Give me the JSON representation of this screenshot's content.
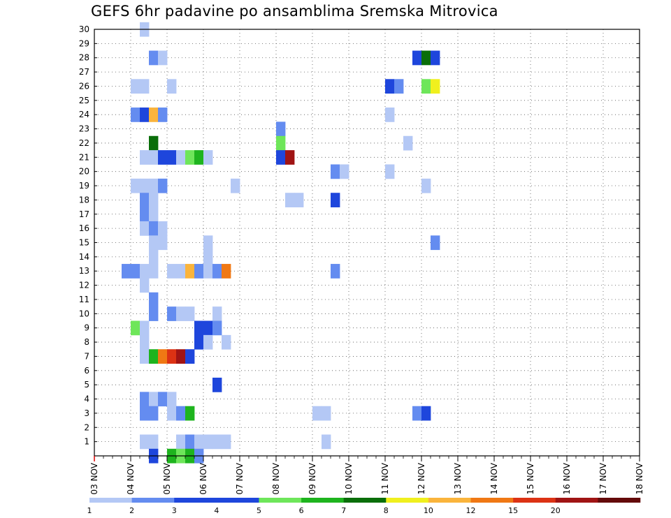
{
  "chart_data": {
    "type": "heatmap",
    "title": "GEFS 6hr padavine po ansamblima Sremska Mitrovica",
    "xlabel": "",
    "ylabel": "",
    "x_ticks": [
      "03 NOV",
      "04 NOV",
      "05 NOV",
      "06 NOV",
      "07 NOV",
      "08 NOV",
      "09 NOV",
      "10 NOV",
      "11 NOV",
      "12 NOV",
      "13 NOV",
      "14 NOV",
      "15 NOV",
      "16 NOV",
      "17 NOV",
      "18 NOV"
    ],
    "y_ticks": [
      "1",
      "2",
      "3",
      "4",
      "5",
      "6",
      "7",
      "8",
      "9",
      "10",
      "11",
      "12",
      "13",
      "14",
      "15",
      "16",
      "17",
      "18",
      "19",
      "20",
      "21",
      "22",
      "23",
      "24",
      "25",
      "26",
      "27",
      "28",
      "29",
      "30"
    ],
    "grid": true,
    "time_step_hours": 6,
    "x_start": "03 NOV 00Z",
    "legend_placement": "bottom",
    "legend": {
      "labels": [
        "1",
        "2",
        "3",
        "4",
        "5",
        "6",
        "7",
        "8",
        "10",
        "12",
        "15",
        "20"
      ],
      "colors": [
        "#b4c8f5",
        "#648cf0",
        "#1e46dc",
        "#1e46dc",
        "#6ee65a",
        "#1eb41e",
        "#0a6e0a",
        "#f0f01e",
        "#fab43c",
        "#f07814",
        "#dc3214",
        "#a01414",
        "#640a0a"
      ]
    },
    "cells": [
      [
        5,
        30,
        1
      ],
      [
        6,
        28,
        2
      ],
      [
        7,
        28,
        1
      ],
      [
        35,
        28,
        3
      ],
      [
        36,
        28,
        7
      ],
      [
        37,
        28,
        3
      ],
      [
        4,
        26,
        1
      ],
      [
        5,
        26,
        1
      ],
      [
        8,
        26,
        1
      ],
      [
        32,
        26,
        3
      ],
      [
        33,
        26,
        2
      ],
      [
        36,
        26,
        5
      ],
      [
        37,
        26,
        8
      ],
      [
        4,
        24,
        2
      ],
      [
        5,
        24,
        3
      ],
      [
        6,
        24,
        10
      ],
      [
        7,
        24,
        2
      ],
      [
        32,
        24,
        1
      ],
      [
        20,
        23,
        2
      ],
      [
        6,
        22,
        7
      ],
      [
        20,
        22,
        5
      ],
      [
        34,
        22,
        1
      ],
      [
        5,
        21,
        1
      ],
      [
        6,
        21,
        1
      ],
      [
        7,
        21,
        3
      ],
      [
        8,
        21,
        3
      ],
      [
        9,
        21,
        1
      ],
      [
        10,
        21,
        5
      ],
      [
        11,
        21,
        6
      ],
      [
        12,
        21,
        1
      ],
      [
        20,
        21,
        3
      ],
      [
        21,
        21,
        20
      ],
      [
        26,
        20,
        2
      ],
      [
        27,
        20,
        1
      ],
      [
        32,
        20,
        1
      ],
      [
        4,
        19,
        1
      ],
      [
        5,
        19,
        1
      ],
      [
        6,
        19,
        1
      ],
      [
        7,
        19,
        2
      ],
      [
        15,
        19,
        1
      ],
      [
        36,
        19,
        1
      ],
      [
        5,
        18,
        2
      ],
      [
        6,
        18,
        1
      ],
      [
        21,
        18,
        1
      ],
      [
        22,
        18,
        1
      ],
      [
        26,
        18,
        3
      ],
      [
        5,
        17,
        2
      ],
      [
        6,
        17,
        1
      ],
      [
        5,
        16,
        1
      ],
      [
        6,
        16,
        2
      ],
      [
        7,
        16,
        1
      ],
      [
        7,
        15,
        1
      ],
      [
        6,
        15,
        1
      ],
      [
        12,
        15,
        1
      ],
      [
        37,
        15,
        2
      ],
      [
        6,
        14,
        1
      ],
      [
        12,
        14,
        1
      ],
      [
        3,
        13,
        2
      ],
      [
        4,
        13,
        2
      ],
      [
        5,
        13,
        1
      ],
      [
        6,
        13,
        1
      ],
      [
        8,
        13,
        1
      ],
      [
        9,
        13,
        1
      ],
      [
        10,
        13,
        10
      ],
      [
        11,
        13,
        2
      ],
      [
        12,
        13,
        1
      ],
      [
        13,
        13,
        2
      ],
      [
        14,
        13,
        12
      ],
      [
        26,
        13,
        2
      ],
      [
        5,
        12,
        1
      ],
      [
        6,
        11,
        2
      ],
      [
        6,
        10,
        2
      ],
      [
        8,
        10,
        2
      ],
      [
        9,
        10,
        1
      ],
      [
        10,
        10,
        1
      ],
      [
        13,
        10,
        1
      ],
      [
        4,
        9,
        5
      ],
      [
        5,
        9,
        1
      ],
      [
        11,
        9,
        3
      ],
      [
        12,
        9,
        3
      ],
      [
        13,
        9,
        2
      ],
      [
        5,
        8,
        1
      ],
      [
        11,
        8,
        3
      ],
      [
        12,
        8,
        1
      ],
      [
        14,
        8,
        1
      ],
      [
        5,
        7,
        1
      ],
      [
        6,
        7,
        6
      ],
      [
        7,
        7,
        12
      ],
      [
        8,
        7,
        15
      ],
      [
        9,
        7,
        20
      ],
      [
        10,
        7,
        3
      ],
      [
        13,
        5,
        3
      ],
      [
        5,
        4,
        2
      ],
      [
        6,
        4,
        1
      ],
      [
        7,
        4,
        2
      ],
      [
        8,
        4,
        1
      ],
      [
        5,
        3,
        2
      ],
      [
        6,
        3,
        2
      ],
      [
        8,
        3,
        1
      ],
      [
        9,
        3,
        2
      ],
      [
        10,
        3,
        6
      ],
      [
        24,
        3,
        1
      ],
      [
        25,
        3,
        1
      ],
      [
        35,
        3,
        2
      ],
      [
        36,
        3,
        3
      ],
      [
        5,
        1,
        1
      ],
      [
        6,
        1,
        1
      ],
      [
        9,
        1,
        1
      ],
      [
        10,
        1,
        2
      ],
      [
        11,
        1,
        1
      ],
      [
        12,
        1,
        1
      ],
      [
        13,
        1,
        1
      ],
      [
        14,
        1,
        1
      ],
      [
        25,
        1,
        1
      ],
      [
        6,
        0,
        3
      ],
      [
        8,
        0,
        6
      ],
      [
        9,
        0,
        5
      ],
      [
        10,
        0,
        6
      ],
      [
        11,
        0,
        2
      ]
    ]
  }
}
